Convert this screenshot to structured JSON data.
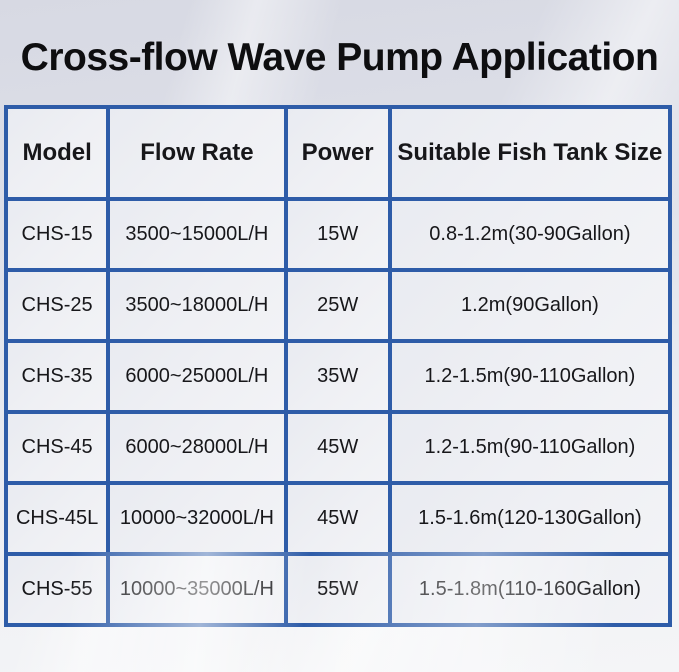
{
  "title": "Cross-flow Wave Pump Application",
  "colors": {
    "table_border": "#2e5ca8",
    "cell_background": "#eef0f4",
    "page_background_top": "#d7d9e3",
    "page_background_bottom": "#f4f5f7",
    "text": "#17171a"
  },
  "table": {
    "columns": [
      "Model",
      "Flow Rate",
      "Power",
      "Suitable Fish Tank Size"
    ],
    "rows": [
      [
        "CHS-15",
        "3500~15000L/H",
        "15W",
        "0.8-1.2m(30-90Gallon)"
      ],
      [
        "CHS-25",
        "3500~18000L/H",
        "25W",
        "1.2m(90Gallon)"
      ],
      [
        "CHS-35",
        "6000~25000L/H",
        "35W",
        "1.2-1.5m(90-110Gallon)"
      ],
      [
        "CHS-45",
        "6000~28000L/H",
        "45W",
        "1.2-1.5m(90-110Gallon)"
      ],
      [
        "CHS-45L",
        "10000~32000L/H",
        "45W",
        "1.5-1.6m(120-130Gallon)"
      ],
      [
        "CHS-55",
        "10000~35000L/H",
        "55W",
        "1.5-1.8m(110-160Gallon)"
      ]
    ]
  }
}
